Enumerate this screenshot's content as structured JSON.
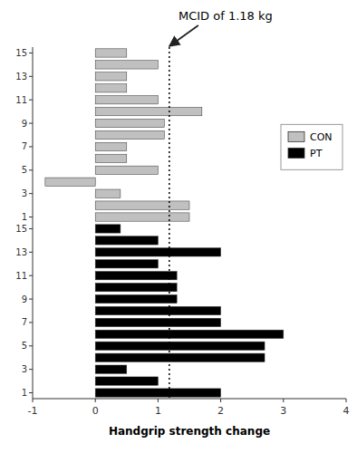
{
  "chart_data": {
    "type": "bar",
    "orientation": "horizontal",
    "title": "MCID of 1.18 kg",
    "xlabel": "Handgrip strength change",
    "categories": [
      "15",
      null,
      "13",
      null,
      "11",
      null,
      "9",
      null,
      "7",
      null,
      "5",
      null,
      "3",
      null,
      "1",
      "15",
      null,
      "13",
      null,
      "11",
      null,
      "9",
      null,
      "7",
      null,
      "5",
      null,
      "3",
      null,
      "1"
    ],
    "series": [
      {
        "name": "CON",
        "color": "#c0c0c0",
        "values": [
          0.5,
          1.0,
          0.5,
          0.5,
          1.0,
          1.7,
          1.1,
          1.1,
          0.5,
          0.5,
          1.0,
          -0.8,
          0.4,
          1.5,
          1.5,
          null,
          null,
          null,
          null,
          null,
          null,
          null,
          null,
          null,
          null,
          null,
          null,
          null,
          null,
          null
        ]
      },
      {
        "name": "PT",
        "color": "#000000",
        "values": [
          null,
          null,
          null,
          null,
          null,
          null,
          null,
          null,
          null,
          null,
          null,
          null,
          null,
          null,
          null,
          0.4,
          1.0,
          2.0,
          1.0,
          1.3,
          1.3,
          1.3,
          2.0,
          2.0,
          3.0,
          2.7,
          2.7,
          0.5,
          1.0,
          2.0
        ]
      }
    ],
    "mcid": 1.18,
    "xlim": [
      -1,
      4
    ],
    "xticks": [
      -1,
      0,
      1,
      2,
      3,
      4
    ],
    "legend": "upper right",
    "grid": false
  }
}
